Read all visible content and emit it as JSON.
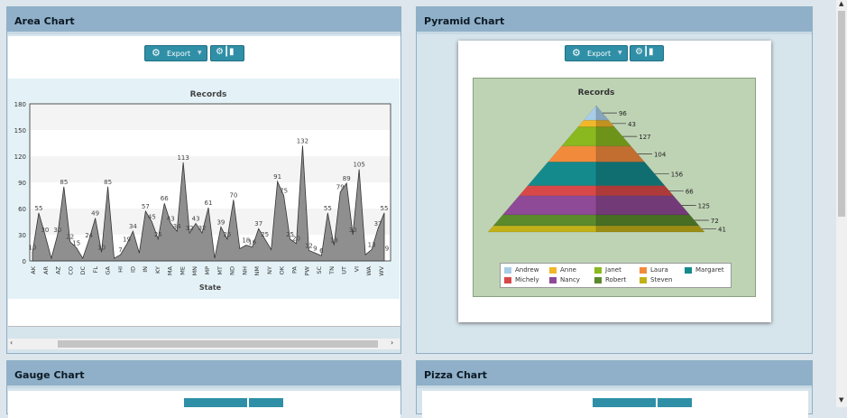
{
  "panels": {
    "area": {
      "title": "Area Chart"
    },
    "pyramid": {
      "title": "Pyramid Chart"
    },
    "gauge": {
      "title": "Gauge Chart"
    },
    "pizza": {
      "title": "Pizza Chart"
    }
  },
  "toolbar": {
    "export_label": "Export"
  },
  "colors": {
    "header": "#8fb0c8",
    "button": "#2f8fa6"
  },
  "chart_data": [
    {
      "type": "area",
      "title": "Records",
      "xlabel": "State",
      "ylabel": "",
      "ylim": [
        0,
        180
      ],
      "yticks": [
        0,
        30,
        60,
        90,
        120,
        150,
        180
      ],
      "categories": [
        "AK",
        "AR",
        "AZ",
        "CO",
        "DC",
        "FL",
        "GA",
        "HI",
        "ID",
        "IN",
        "KY",
        "MA",
        "ME",
        "MN",
        "MP",
        "MT",
        "ND",
        "NH",
        "NM",
        "NY",
        "OK",
        "PA",
        "PW",
        "SC",
        "TN",
        "UT",
        "VI",
        "WA",
        "WV"
      ],
      "x": [
        1,
        2,
        3,
        4,
        5,
        6,
        7,
        8,
        9,
        10,
        11,
        12,
        13,
        14,
        15,
        16,
        17,
        18,
        19,
        20,
        21,
        22,
        23,
        24,
        25,
        26,
        27,
        28,
        29,
        30,
        31,
        32,
        33,
        34,
        35,
        36,
        37,
        38,
        39,
        40,
        41,
        42,
        43,
        44,
        45,
        46,
        47,
        48,
        49,
        50,
        51,
        52,
        53,
        54,
        55,
        56,
        57
      ],
      "values": [
        10,
        55,
        30,
        3,
        30,
        85,
        22,
        15,
        3,
        24,
        49,
        10,
        85,
        3,
        7,
        19,
        34,
        9,
        57,
        45,
        25,
        66,
        43,
        34,
        113,
        32,
        43,
        32,
        61,
        3,
        39,
        25,
        70,
        14,
        18,
        16,
        37,
        25,
        13,
        91,
        75,
        25,
        20,
        132,
        12,
        9,
        6,
        55,
        18,
        79,
        89,
        30,
        105,
        7,
        13,
        37,
        55
      ],
      "labels": [
        "10",
        "55",
        "30",
        "",
        "30",
        "85",
        "22",
        "15",
        "",
        "24",
        "49",
        "10",
        "85",
        "",
        "7",
        "19",
        "34",
        "",
        "57",
        "45",
        "25",
        "66",
        "43",
        "34",
        "113",
        "32",
        "43",
        "32",
        "61",
        "",
        "39",
        "25",
        "70",
        "",
        "18",
        "16",
        "37",
        "25",
        "",
        "91",
        "75",
        "25",
        "20",
        "132",
        "12",
        "9",
        "6",
        "55",
        "18",
        "79",
        "89",
        "30",
        "105",
        "",
        "13",
        "37",
        "55"
      ],
      "last_label": "9",
      "fill": "#8f8f8f"
    },
    {
      "type": "pyramid",
      "title": "Records",
      "categories": [
        "Andrew",
        "Anne",
        "Janet",
        "Laura",
        "Margaret",
        "Michely",
        "Nancy",
        "Robert",
        "Steven"
      ],
      "values": [
        96,
        43,
        127,
        104,
        156,
        66,
        125,
        72,
        41
      ],
      "colors": [
        "#a8cde8",
        "#f2b728",
        "#8ab81f",
        "#f28a3c",
        "#148a8c",
        "#d94848",
        "#8e4a96",
        "#5a8a2c",
        "#c2b018"
      ],
      "legend": "bottom"
    }
  ]
}
